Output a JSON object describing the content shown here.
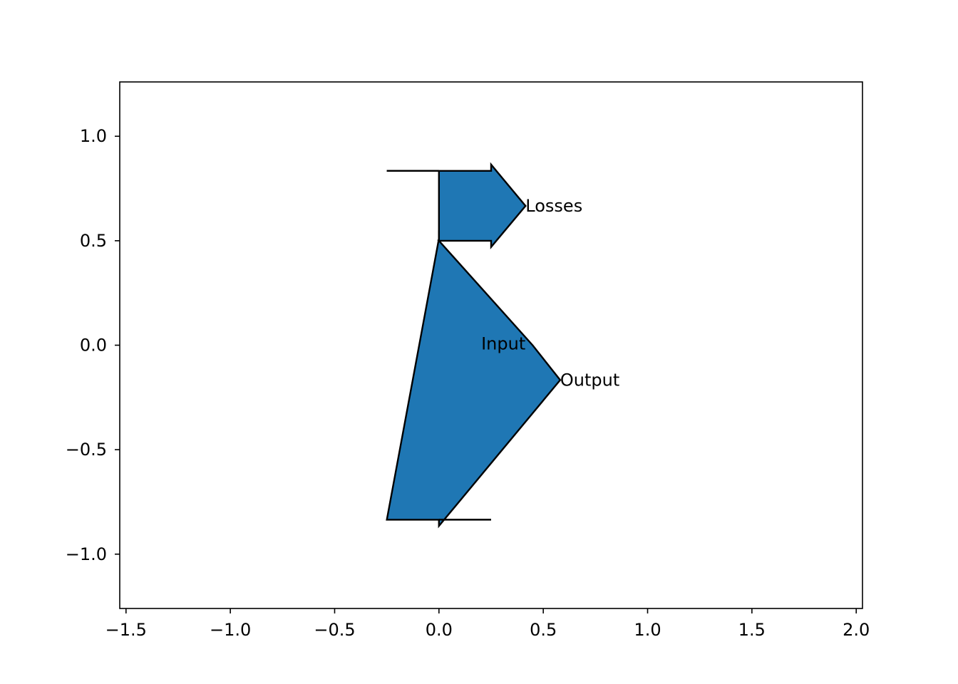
{
  "diagram": {
    "type": "sankey",
    "flow_color": "#1f77b4",
    "edge_color": "#000000",
    "labels": {
      "input": "Input",
      "losses": "Losses",
      "output": "Output"
    },
    "flows": [
      {
        "name": "input",
        "value": 1.0
      },
      {
        "name": "losses",
        "value": -0.333
      },
      {
        "name": "output",
        "value": -0.667
      }
    ],
    "axes": {
      "xlim": [
        -1.53,
        2.03
      ],
      "ylim": [
        -1.26,
        1.26
      ],
      "x_ticks": [
        {
          "value": -1.5,
          "label": "−1.5"
        },
        {
          "value": -1.0,
          "label": "−1.0"
        },
        {
          "value": -0.5,
          "label": "−0.5"
        },
        {
          "value": 0.0,
          "label": "0.0"
        },
        {
          "value": 0.5,
          "label": "0.5"
        },
        {
          "value": 1.0,
          "label": "1.0"
        },
        {
          "value": 1.5,
          "label": "1.5"
        },
        {
          "value": 2.0,
          "label": "2.0"
        }
      ],
      "y_ticks": [
        {
          "value": 1.0,
          "label": "1.0"
        },
        {
          "value": 0.5,
          "label": "0.5"
        },
        {
          "value": 0.0,
          "label": "0.0"
        },
        {
          "value": -0.5,
          "label": "−0.5"
        },
        {
          "value": -1.0,
          "label": "−1.0"
        }
      ],
      "grid": false
    }
  }
}
